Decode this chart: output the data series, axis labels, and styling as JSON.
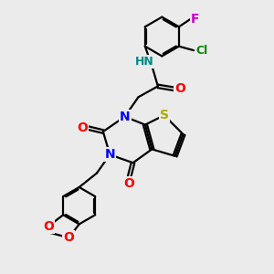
{
  "background_color": "#ebebeb",
  "atom_colors": {
    "N": "#0000ff",
    "O": "#ff0000",
    "S": "#aaaa00",
    "F": "#cc00cc",
    "Cl": "#008800",
    "H": "#008888",
    "C": "#000000"
  },
  "bond_color": "#000000",
  "bond_width": 1.6,
  "font_size_atoms": 9
}
